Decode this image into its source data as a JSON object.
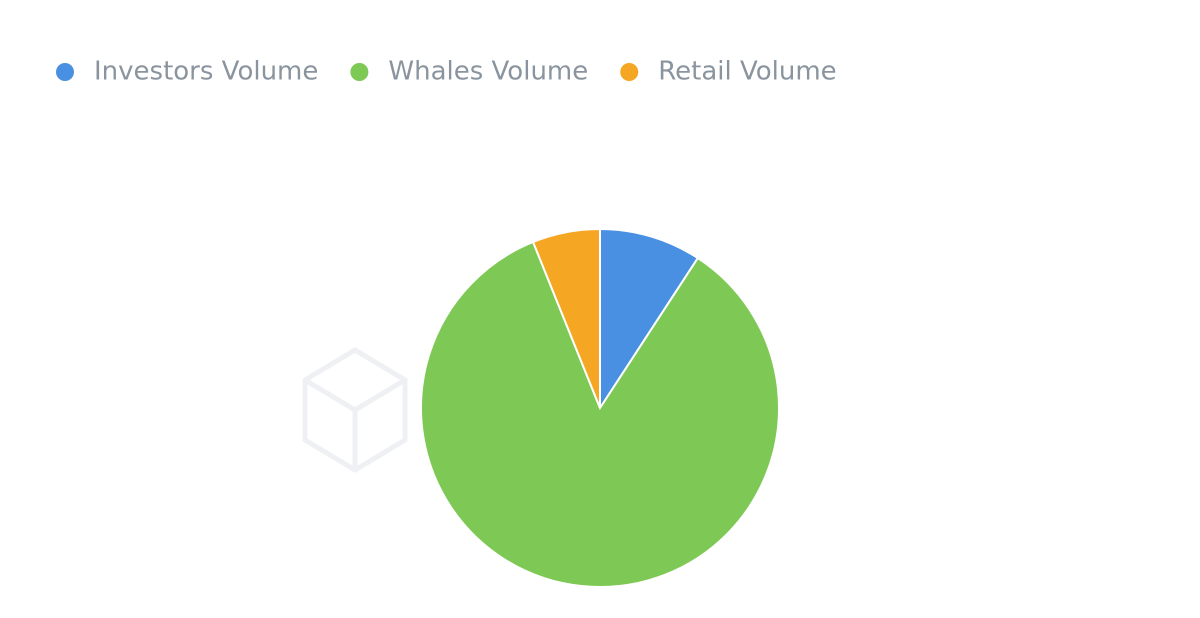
{
  "chart_data": {
    "type": "pie",
    "categories": [
      "Investors Volume",
      "Whales Volume",
      "Retail Volume"
    ],
    "values": [
      9.2,
      84.7,
      6.1
    ],
    "colors": [
      "#4a90e2",
      "#7ec855",
      "#f5a623"
    ],
    "legend": "top-left"
  }
}
